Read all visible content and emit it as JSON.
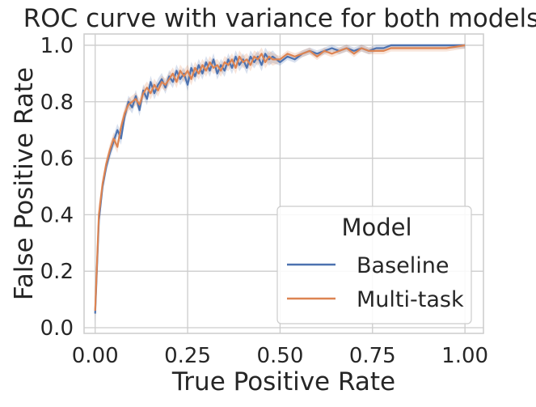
{
  "chart_data": {
    "type": "line",
    "title": "ROC curve with variance for both models",
    "xlabel": "True Positive Rate",
    "ylabel": "False Positive Rate",
    "xlim": [
      -0.03,
      1.05
    ],
    "ylim": [
      -0.02,
      1.04
    ],
    "xticks": [
      0.0,
      0.25,
      0.5,
      0.75,
      1.0
    ],
    "xtick_labels": [
      "0.00",
      "0.25",
      "0.50",
      "0.75",
      "1.00"
    ],
    "yticks": [
      0.0,
      0.2,
      0.4,
      0.6,
      0.8,
      1.0
    ],
    "ytick_labels": [
      "0.0",
      "0.2",
      "0.4",
      "0.6",
      "0.8",
      "1.0"
    ],
    "grid": true,
    "legend": {
      "title": "Model",
      "position": "lower-right"
    },
    "series": [
      {
        "name": "Baseline",
        "color": "#4c72b0",
        "points": [
          [
            0.0,
            0.05
          ],
          [
            0.01,
            0.38
          ],
          [
            0.02,
            0.5
          ],
          [
            0.03,
            0.57
          ],
          [
            0.04,
            0.62
          ],
          [
            0.05,
            0.66
          ],
          [
            0.06,
            0.7
          ],
          [
            0.07,
            0.67
          ],
          [
            0.08,
            0.75
          ],
          [
            0.09,
            0.8
          ],
          [
            0.1,
            0.78
          ],
          [
            0.11,
            0.82
          ],
          [
            0.12,
            0.77
          ],
          [
            0.13,
            0.84
          ],
          [
            0.14,
            0.81
          ],
          [
            0.15,
            0.87
          ],
          [
            0.16,
            0.83
          ],
          [
            0.17,
            0.86
          ],
          [
            0.18,
            0.88
          ],
          [
            0.19,
            0.85
          ],
          [
            0.2,
            0.89
          ],
          [
            0.21,
            0.87
          ],
          [
            0.22,
            0.91
          ],
          [
            0.23,
            0.88
          ],
          [
            0.24,
            0.9
          ],
          [
            0.25,
            0.86
          ],
          [
            0.26,
            0.92
          ],
          [
            0.27,
            0.89
          ],
          [
            0.28,
            0.93
          ],
          [
            0.29,
            0.9
          ],
          [
            0.3,
            0.94
          ],
          [
            0.31,
            0.91
          ],
          [
            0.32,
            0.95
          ],
          [
            0.33,
            0.9
          ],
          [
            0.34,
            0.93
          ],
          [
            0.35,
            0.91
          ],
          [
            0.36,
            0.95
          ],
          [
            0.37,
            0.92
          ],
          [
            0.38,
            0.96
          ],
          [
            0.39,
            0.93
          ],
          [
            0.4,
            0.95
          ],
          [
            0.41,
            0.92
          ],
          [
            0.42,
            0.96
          ],
          [
            0.43,
            0.94
          ],
          [
            0.44,
            0.96
          ],
          [
            0.45,
            0.93
          ],
          [
            0.46,
            0.97
          ],
          [
            0.47,
            0.95
          ],
          [
            0.48,
            0.96
          ],
          [
            0.5,
            0.94
          ],
          [
            0.52,
            0.96
          ],
          [
            0.54,
            0.95
          ],
          [
            0.56,
            0.97
          ],
          [
            0.58,
            0.98
          ],
          [
            0.6,
            0.97
          ],
          [
            0.62,
            0.98
          ],
          [
            0.64,
            0.99
          ],
          [
            0.66,
            0.98
          ],
          [
            0.68,
            0.99
          ],
          [
            0.7,
            0.98
          ],
          [
            0.72,
            0.99
          ],
          [
            0.74,
            0.98
          ],
          [
            0.76,
            0.99
          ],
          [
            0.78,
            0.99
          ],
          [
            0.8,
            1.0
          ],
          [
            0.85,
            1.0
          ],
          [
            0.9,
            1.0
          ],
          [
            0.95,
            1.0
          ],
          [
            1.0,
            1.0
          ]
        ]
      },
      {
        "name": "Multi-task",
        "color": "#dd8452",
        "points": [
          [
            0.0,
            0.06
          ],
          [
            0.01,
            0.4
          ],
          [
            0.02,
            0.51
          ],
          [
            0.03,
            0.58
          ],
          [
            0.04,
            0.63
          ],
          [
            0.05,
            0.67
          ],
          [
            0.06,
            0.64
          ],
          [
            0.07,
            0.71
          ],
          [
            0.08,
            0.76
          ],
          [
            0.09,
            0.79
          ],
          [
            0.1,
            0.8
          ],
          [
            0.11,
            0.81
          ],
          [
            0.12,
            0.79
          ],
          [
            0.13,
            0.83
          ],
          [
            0.14,
            0.85
          ],
          [
            0.15,
            0.83
          ],
          [
            0.16,
            0.86
          ],
          [
            0.17,
            0.84
          ],
          [
            0.18,
            0.87
          ],
          [
            0.19,
            0.86
          ],
          [
            0.2,
            0.88
          ],
          [
            0.21,
            0.9
          ],
          [
            0.22,
            0.87
          ],
          [
            0.23,
            0.91
          ],
          [
            0.24,
            0.89
          ],
          [
            0.25,
            0.91
          ],
          [
            0.26,
            0.88
          ],
          [
            0.27,
            0.92
          ],
          [
            0.28,
            0.9
          ],
          [
            0.29,
            0.93
          ],
          [
            0.3,
            0.91
          ],
          [
            0.31,
            0.94
          ],
          [
            0.32,
            0.92
          ],
          [
            0.33,
            0.93
          ],
          [
            0.34,
            0.91
          ],
          [
            0.35,
            0.94
          ],
          [
            0.36,
            0.93
          ],
          [
            0.37,
            0.95
          ],
          [
            0.38,
            0.92
          ],
          [
            0.39,
            0.96
          ],
          [
            0.4,
            0.94
          ],
          [
            0.41,
            0.95
          ],
          [
            0.42,
            0.93
          ],
          [
            0.43,
            0.96
          ],
          [
            0.44,
            0.95
          ],
          [
            0.45,
            0.97
          ],
          [
            0.46,
            0.94
          ],
          [
            0.47,
            0.96
          ],
          [
            0.48,
            0.95
          ],
          [
            0.5,
            0.95
          ],
          [
            0.52,
            0.97
          ],
          [
            0.54,
            0.96
          ],
          [
            0.56,
            0.97
          ],
          [
            0.58,
            0.98
          ],
          [
            0.6,
            0.96
          ],
          [
            0.62,
            0.98
          ],
          [
            0.64,
            0.97
          ],
          [
            0.66,
            0.98
          ],
          [
            0.68,
            0.99
          ],
          [
            0.7,
            0.97
          ],
          [
            0.72,
            0.99
          ],
          [
            0.74,
            0.98
          ],
          [
            0.76,
            0.98
          ],
          [
            0.78,
            0.98
          ],
          [
            0.8,
            0.99
          ],
          [
            0.85,
            0.99
          ],
          [
            0.9,
            0.99
          ],
          [
            0.95,
            0.99
          ],
          [
            1.0,
            1.0
          ]
        ]
      }
    ]
  }
}
